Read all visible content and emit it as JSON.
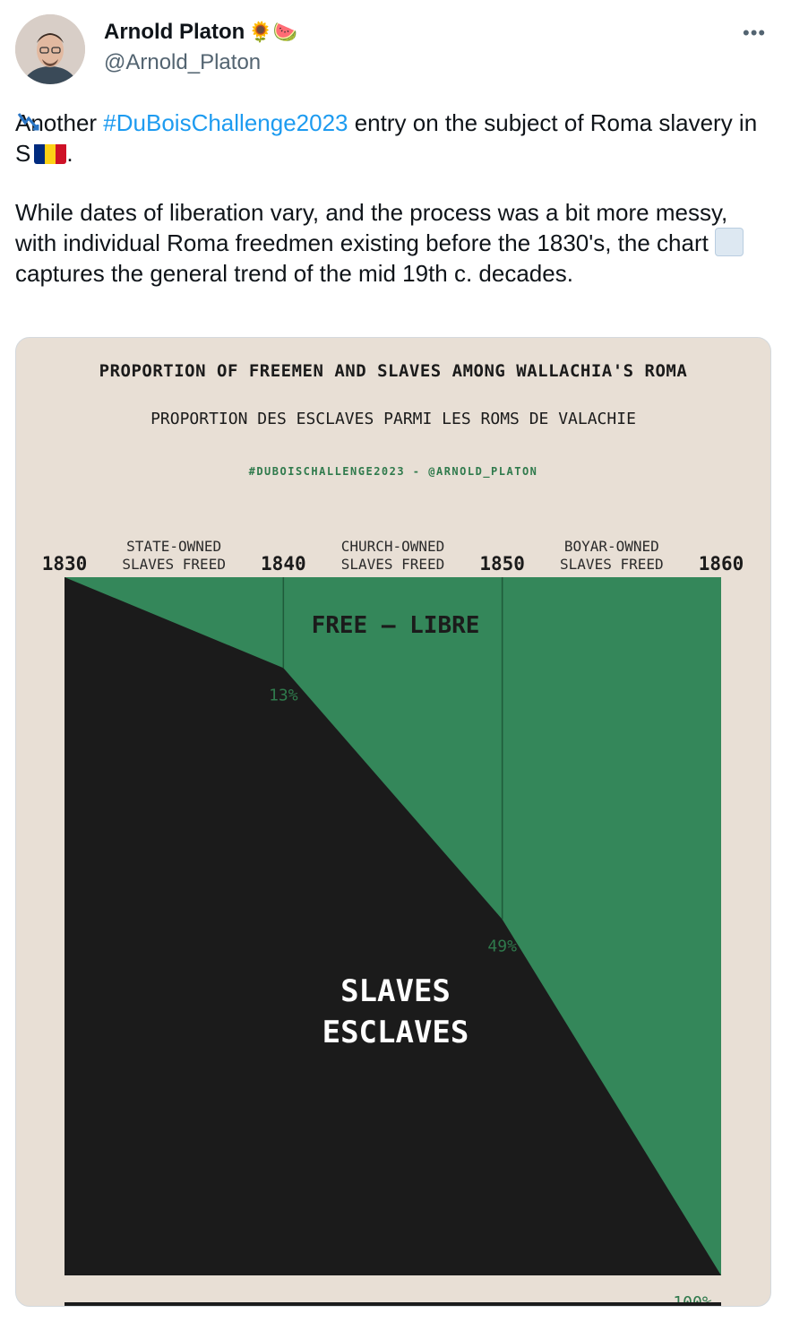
{
  "author": {
    "name": "Arnold Platon",
    "badges": "🌻🍉",
    "handle": "@Arnold_Platon"
  },
  "menu_icon": "more-dots-icon",
  "tweet": {
    "line1_before": "Another ",
    "hashtag": "#DuBoisChallenge2023",
    "line1_after": " entry on the subject of Roma slavery in S",
    "line1_end": ".",
    "para2_before": "While dates of liberation vary, and the process was a bit more messy, with individual Roma freedmen existing before the 1830's, the chart ",
    "para2_after": " captures the general trend of the mid 19th c. decades."
  },
  "chart_card": {
    "title_en": "PROPORTION OF FREEMEN AND SLAVES AMONG WALLACHIA'S ROMA",
    "title_fr": "PROPORTION DES ESCLAVES PARMI LES ROMS DE VALACHIE",
    "credit": "#DUBOISCHALLENGE2023 - @ARNOLD_PLATON"
  },
  "colors": {
    "free": "#34875a",
    "slaves": "#1b1b1b",
    "background": "#e8dfd5",
    "pct_label": "#2f7a4c",
    "link": "#1d9bf0"
  },
  "chart_data": {
    "type": "area",
    "title": "PROPORTION OF FREEMEN AND SLAVES AMONG WALLACHIA'S ROMA",
    "subtitle": "PROPORTION DES ESCLAVES PARMI LES ROMS DE VALACHIE",
    "x": [
      1830,
      1840,
      1850,
      1860
    ],
    "x_tick_labels": [
      "1830",
      "1840",
      "1850",
      "1860"
    ],
    "period_labels": [
      {
        "line1": "STATE-OWNED",
        "line2": "SLAVES FREED"
      },
      {
        "line1": "CHURCH-OWNED",
        "line2": "SLAVES FREED"
      },
      {
        "line1": "BOYAR-OWNED",
        "line2": "SLAVES FREED"
      }
    ],
    "free_percent": [
      0,
      13,
      49,
      100
    ],
    "point_labels": [
      "",
      "13%",
      "49%",
      "100%"
    ],
    "series": [
      {
        "name": "FREE — LIBRE",
        "values": [
          0,
          13,
          49,
          100
        ]
      },
      {
        "name": "SLAVES ESCLAVES",
        "values": [
          100,
          87,
          51,
          0
        ]
      }
    ],
    "region_labels": {
      "free": "FREE — LIBRE",
      "slaves_line1": "SLAVES",
      "slaves_line2": "ESCLAVES"
    },
    "ylim": [
      0,
      100
    ],
    "grid": false
  }
}
